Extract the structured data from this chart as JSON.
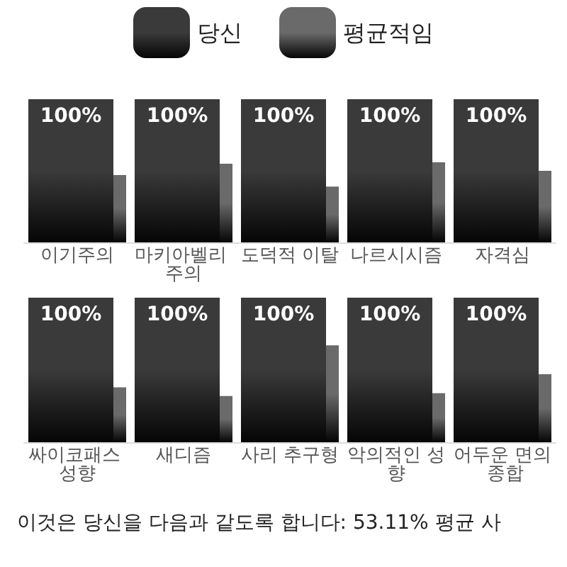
{
  "chart_data": [
    {
      "type": "bar",
      "categories": [
        "이기주의",
        "마키아벨리 주의",
        "도덕적 이탈",
        "나르시시즘",
        "자격심"
      ],
      "series": [
        {
          "name": "당신",
          "color": "#3a3a3a",
          "values": [
            100,
            100,
            100,
            100,
            100
          ],
          "value_labels": [
            "100%",
            "100%",
            "100%",
            "100%",
            "100%"
          ]
        },
        {
          "name": "평균적임",
          "color": "#6a6a6a",
          "values": [
            47,
            55,
            39,
            56,
            50
          ]
        }
      ],
      "ylim": [
        0,
        100
      ],
      "legend": "top",
      "tick_labels": "x"
    },
    {
      "type": "bar",
      "categories": [
        "싸이코패스 성향",
        "새디즘",
        "사리 추구형",
        "악의적인 성향",
        "어두운 면의 종합"
      ],
      "series": [
        {
          "color": "#3a3a3a",
          "values": [
            100,
            100,
            100,
            100,
            100
          ],
          "value_labels": [
            "100%",
            "100%",
            "100%",
            "100%",
            "100%"
          ]
        },
        {
          "color": "#6a6a6a",
          "values": [
            38,
            32,
            67,
            34,
            47
          ]
        }
      ],
      "ylim": [
        0,
        100
      ],
      "tick_labels": "x",
      "annotations": [
        "이것은 당신을 다음과 같도록 합니다: 53.11% 평균 사"
      ]
    }
  ]
}
